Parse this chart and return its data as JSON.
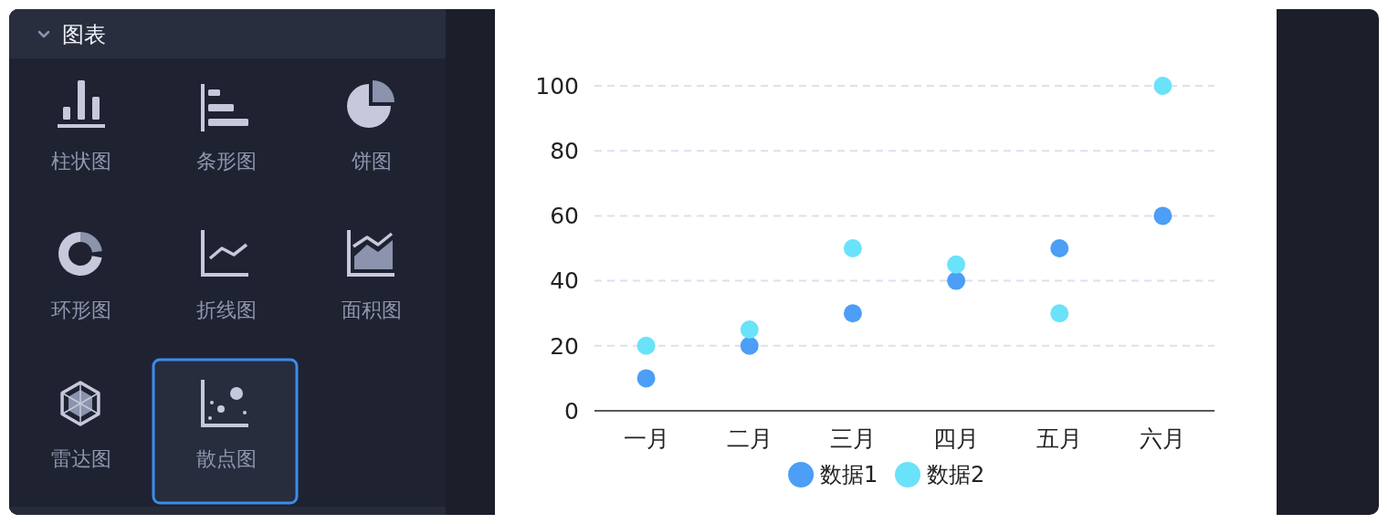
{
  "chart_data": [
    {
      "type": "other",
      "title": "图表",
      "annotations": [
        "柱状图",
        "条形图",
        "饼图",
        "环形图",
        "折线图",
        "面积图",
        "雷达图",
        "散点图"
      ]
    },
    {
      "type": "scatter",
      "categories": [
        "一月",
        "二月",
        "三月",
        "四月",
        "五月",
        "六月"
      ],
      "series": [
        {
          "name": "数据1",
          "color": "#4c9ef6",
          "values": [
            10,
            20,
            30,
            40,
            50,
            60
          ]
        },
        {
          "name": "数据2",
          "color": "#6ae2fa",
          "values": [
            20,
            25,
            50,
            45,
            30,
            100
          ]
        }
      ],
      "ylim": [
        0,
        100
      ],
      "yticks": [
        0,
        20,
        40,
        60,
        80,
        100
      ],
      "grid": "y",
      "legend": "bottom",
      "marker": "circle"
    }
  ]
}
